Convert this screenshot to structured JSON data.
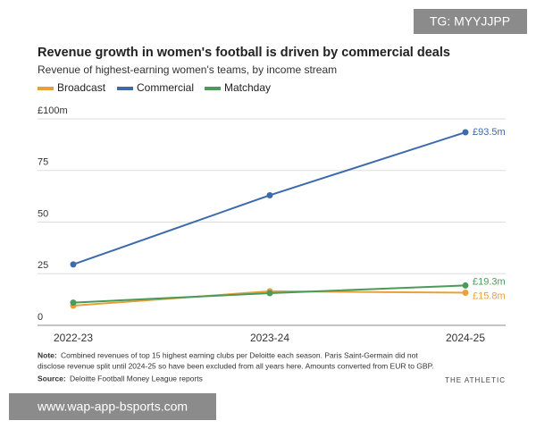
{
  "chart_data": {
    "type": "line",
    "title": "Revenue growth in women's football is driven by commercial deals",
    "subtitle": "Revenue of highest-earning women's teams, by income stream",
    "categories": [
      "2022-23",
      "2023-24",
      "2024-25"
    ],
    "series": [
      {
        "name": "Broadcast",
        "color": "#e8a13a",
        "values": [
          9.5,
          16.5,
          15.8
        ],
        "value_labels": [
          null,
          null,
          "£15.8m"
        ]
      },
      {
        "name": "Commercial",
        "color": "#3d6aab",
        "values": [
          29.5,
          63,
          93.5
        ],
        "value_labels": [
          null,
          null,
          "£93.5m"
        ]
      },
      {
        "name": "Matchday",
        "color": "#4a9a5a",
        "values": [
          11,
          15.6,
          19.3
        ],
        "value_labels": [
          null,
          null,
          "£19.3m"
        ]
      }
    ],
    "ylim": [
      0,
      100
    ],
    "yticks": [
      0,
      25,
      50,
      75,
      {
        "value": 100,
        "label": "£100m"
      }
    ],
    "grid": true,
    "note_label": "Note:",
    "note_lines": [
      "Combined revenues of top 15 highest earning clubs per Deloitte each season. Paris Saint-Germain did not",
      "disclose revenue split until 2024-25 so have been excluded from all years here. Amounts converted from EUR to GBP."
    ],
    "source_label": "Source:",
    "source": "Deloitte Football Money League reports",
    "brand": "THE ATHLETIC"
  },
  "watermarks": [
    "TG: MYYJJPP",
    "www.wap-app-bsports.com"
  ]
}
